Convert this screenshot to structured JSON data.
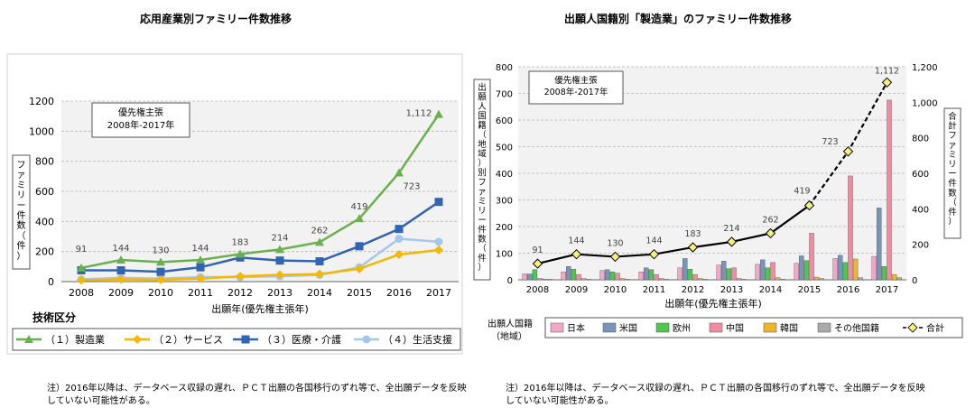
{
  "left_chart_title": "応用産業別ファミリー件数推移",
  "right_chart_title": "出願人国籍別「製造業」のファミリー件数推移",
  "left_note": "注）2016年以降は、データベース収録の遅れ、ＰＣＴ出願の各国移行のずれ等で、全出願データを反映していない可能性がある。",
  "right_note": "注）2016年以降は、データベース収録の遅れ、ＰＣＴ出願の各国移行のずれ等で、全出願データを反映していない可能性がある。",
  "colors": {
    "green": "#6ab04c",
    "orange": "#f5b800",
    "blue": "#3264b4",
    "lightblue": "#a5c8e8",
    "japan": "#f4a6c6",
    "usa": "#7894b8",
    "europe": "#4cc84c",
    "china": "#f08ca0",
    "korea": "#f0b428",
    "other": "#aaaaaa",
    "total": "#000000",
    "plot_bg": "#f2f2f2"
  },
  "chart_data": [
    {
      "type": "line",
      "title": "応用産業別ファミリー件数推移",
      "annotation": "優先権主張\n2008年-2017年",
      "xlabel": "出願年(優先権主張年)",
      "ylabel": "ファミリー件数（件）",
      "x": [
        "2008",
        "2009",
        "2010",
        "2011",
        "2012",
        "2013",
        "2014",
        "2015",
        "2016",
        "2017"
      ],
      "ylim": [
        0,
        1200
      ],
      "yticks": [
        "0",
        "200",
        "400",
        "600",
        "800",
        "1000",
        "1200"
      ],
      "grid": true,
      "legend_title": "技術区分",
      "legend_position": "bottom",
      "series": [
        {
          "name": "（１）製造業",
          "marker": "triangle",
          "color": "#6ab04c",
          "values": [
            91,
            144,
            130,
            144,
            183,
            214,
            262,
            419,
            723,
            1112
          ],
          "labels": [
            "91",
            "144",
            "130",
            "144",
            "183",
            "214",
            "262",
            "419",
            "723",
            "1,112"
          ]
        },
        {
          "name": "（２）サービス",
          "marker": "diamond",
          "color": "#f5b800",
          "values": [
            10,
            15,
            12,
            20,
            35,
            45,
            50,
            85,
            180,
            210
          ]
        },
        {
          "name": "（３）医療・介護",
          "marker": "square",
          "color": "#3264b4",
          "values": [
            75,
            75,
            65,
            95,
            160,
            140,
            135,
            235,
            350,
            530
          ]
        },
        {
          "name": "（４）生活支援",
          "marker": "circle",
          "color": "#a5c8e8",
          "values": [
            15,
            25,
            20,
            30,
            30,
            35,
            45,
            95,
            285,
            265
          ]
        }
      ]
    },
    {
      "type": "bar",
      "title": "出願人国籍別「製造業」のファミリー件数推移",
      "annotation": "優先権主張\n2008年-2017年",
      "xlabel": "出願年(優先権主張年)",
      "ylabel": "出願人国籍（地域）別ファミリー件数（件）",
      "y2label": "合計ファミリー件数（件）",
      "categories": [
        "2008",
        "2009",
        "2010",
        "2011",
        "2012",
        "2013",
        "2014",
        "2015",
        "2016",
        "2017"
      ],
      "ylim": [
        0,
        800
      ],
      "yticks": [
        "0",
        "100",
        "200",
        "300",
        "400",
        "500",
        "600",
        "700",
        "800"
      ],
      "y2lim": [
        0,
        1200
      ],
      "y2ticks": [
        "0",
        "200",
        "400",
        "600",
        "800",
        "1,000",
        "1,200"
      ],
      "grid": true,
      "legend_title": "出願人国籍\n（地域）",
      "legend_position": "bottom",
      "series": [
        {
          "name": "日本",
          "color": "#f4a6c6",
          "values": [
            22,
            30,
            35,
            30,
            45,
            55,
            58,
            62,
            80,
            88
          ]
        },
        {
          "name": "米国",
          "color": "#7894b8",
          "values": [
            22,
            50,
            38,
            45,
            80,
            70,
            75,
            90,
            92,
            270
          ]
        },
        {
          "name": "欧州",
          "color": "#4cc84c",
          "values": [
            38,
            40,
            30,
            38,
            40,
            42,
            45,
            72,
            65,
            50
          ]
        },
        {
          "name": "中国",
          "color": "#f08ca0",
          "values": [
            5,
            20,
            25,
            20,
            20,
            45,
            65,
            175,
            390,
            675
          ]
        },
        {
          "name": "韓国",
          "color": "#f0b428",
          "values": [
            3,
            5,
            5,
            5,
            5,
            5,
            8,
            10,
            78,
            20
          ]
        },
        {
          "name": "その他国籍",
          "color": "#aaaaaa",
          "values": [
            2,
            2,
            2,
            2,
            2,
            2,
            2,
            5,
            8,
            8
          ]
        }
      ],
      "total_series": {
        "name": "合計",
        "color": "#000000",
        "values": [
          91,
          144,
          130,
          144,
          183,
          214,
          262,
          419,
          723,
          1112
        ],
        "labels": [
          "91",
          "144",
          "130",
          "144",
          "183",
          "214",
          "262",
          "419",
          "723",
          "1,112"
        ]
      }
    }
  ]
}
